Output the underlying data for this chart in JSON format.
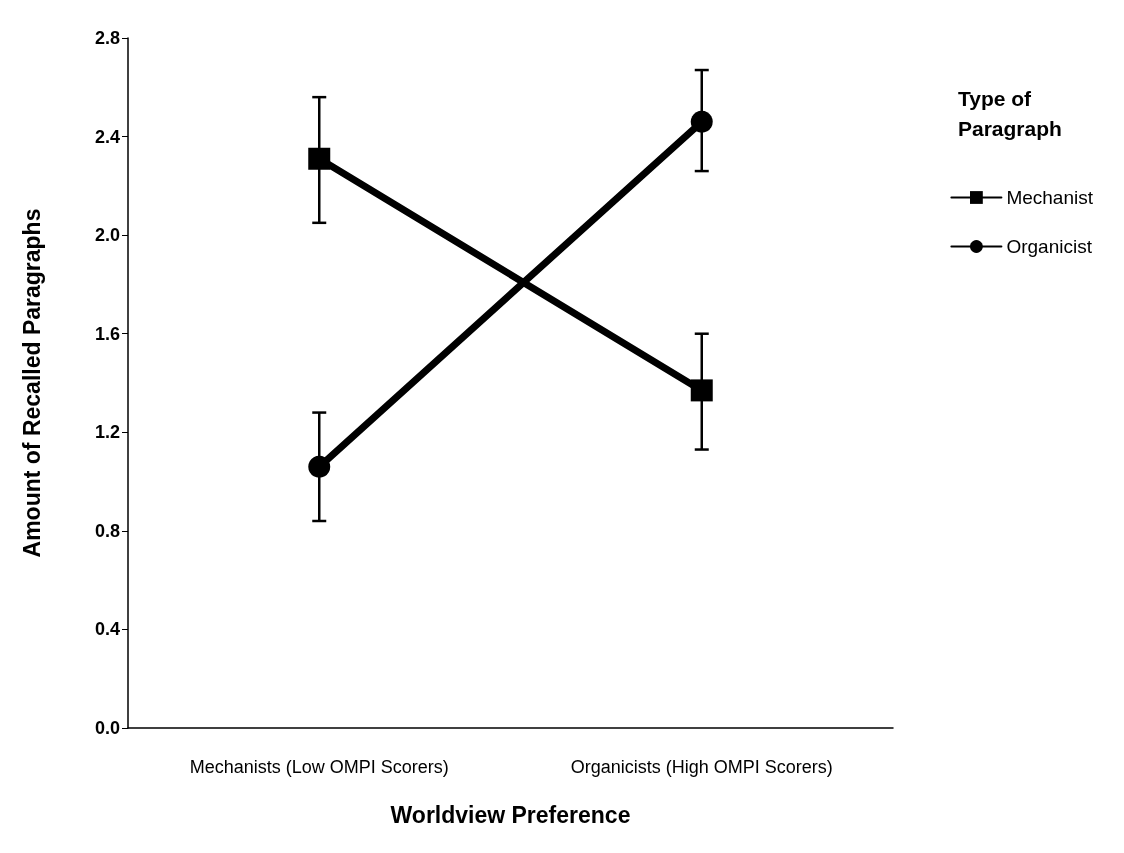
{
  "chart_data": {
    "type": "line",
    "xlabel": "Worldview Preference",
    "ylabel": "Amount of Recalled Paragraphs",
    "legend_title": "Type of Paragraph",
    "categories": [
      "Mechanists (Low OMPI Scorers)",
      "Organicists (High OMPI Scorers)"
    ],
    "series": [
      {
        "name": "Mechanist",
        "color": "#000000",
        "marker": "square",
        "values": [
          2.31,
          1.37
        ],
        "errors": [
          [
            2.05,
            2.56
          ],
          [
            1.13,
            1.6
          ]
        ]
      },
      {
        "name": "Organicist",
        "color": "#000000",
        "marker": "circle",
        "values": [
          1.06,
          2.46
        ],
        "errors": [
          [
            0.84,
            1.28
          ],
          [
            2.26,
            2.67
          ]
        ]
      }
    ],
    "ylim": [
      0,
      2.8
    ],
    "yticks": [
      {
        "value": 0,
        "label": "0.0"
      },
      0.4,
      0.8,
      1.2,
      1.6,
      {
        "value": 2,
        "label": "2.0"
      },
      2.4,
      2.8
    ],
    "grid": false,
    "legend": "right",
    "line_style": "solid"
  }
}
